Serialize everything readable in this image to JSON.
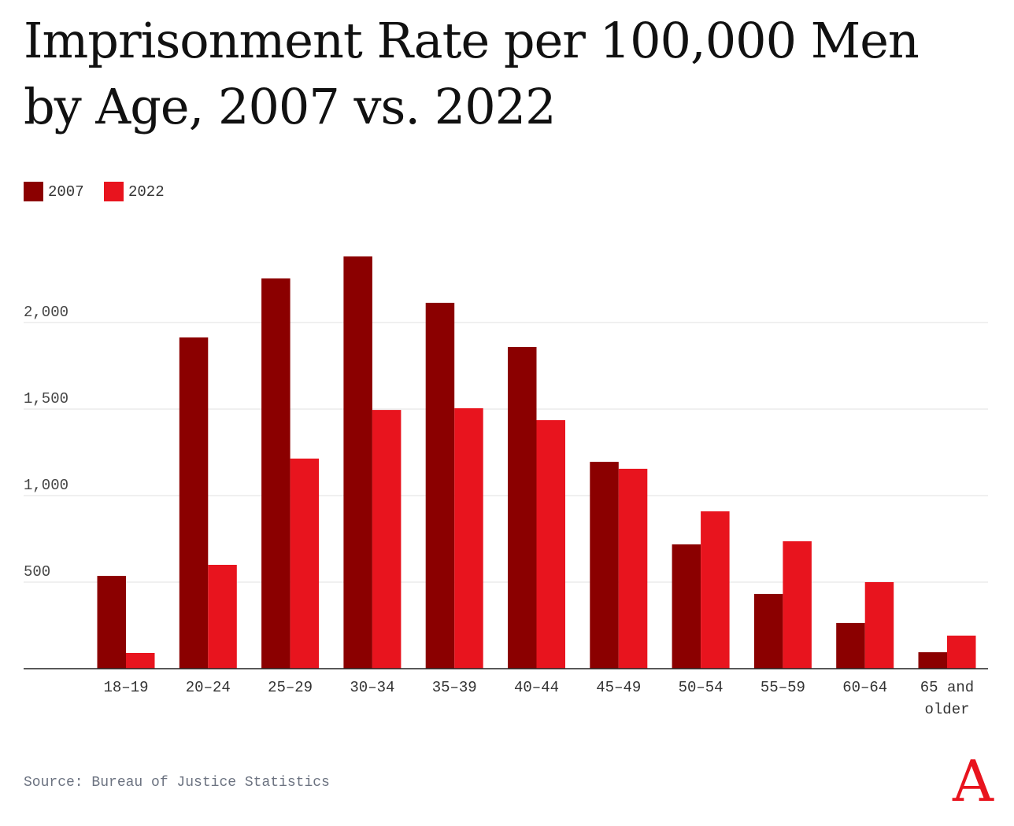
{
  "chart_data": {
    "type": "bar",
    "title": "Imprisonment Rate per 100,000 Men by Age, 2007 vs. 2022",
    "xlabel": "",
    "ylabel": "",
    "categories": [
      "18–19",
      "20–24",
      "25–29",
      "30–34",
      "35–39",
      "40–44",
      "45–49",
      "50–54",
      "55–59",
      "60–64",
      "65 and older"
    ],
    "series": [
      {
        "name": "2007",
        "color": "#8b0000",
        "values": [
          536,
          1914,
          2255,
          2382,
          2114,
          1859,
          1195,
          718,
          432,
          264,
          95
        ]
      },
      {
        "name": "2022",
        "color": "#e8141e",
        "values": [
          91,
          600,
          1214,
          1495,
          1505,
          1436,
          1155,
          909,
          736,
          500,
          191
        ]
      }
    ],
    "ylim": [
      0,
      2500
    ],
    "yticks": [
      500,
      1000,
      1500,
      2000
    ],
    "ytick_labels": [
      "500",
      "1,000",
      "1,500",
      "2,000"
    ],
    "grid": true,
    "legend_position": "top-left",
    "source": "Source: Bureau of Justice Statistics",
    "logo": "A"
  }
}
